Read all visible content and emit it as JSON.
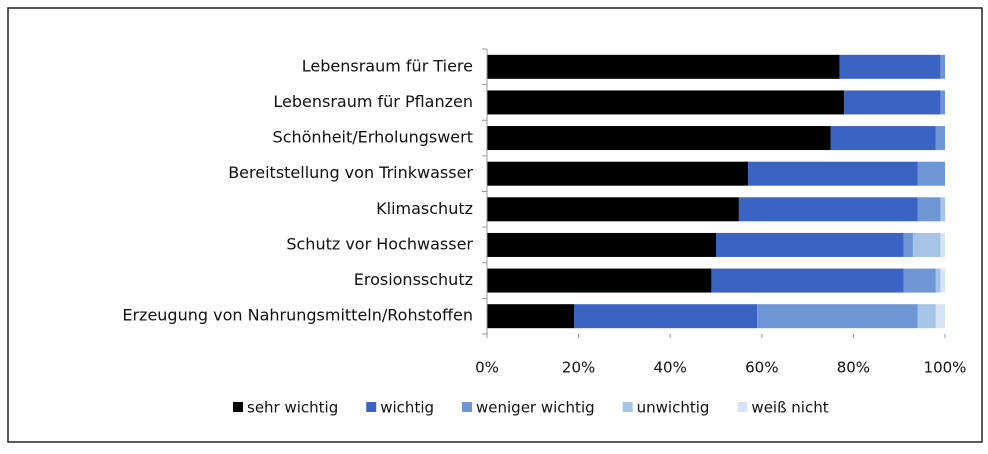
{
  "chart_data": {
    "type": "stacked-bar-horizontal",
    "categories": [
      "Lebensraum für Tiere",
      "Lebensraum für Pflanzen",
      "Schönheit/Erholungswert",
      "Bereitstellung von Trinkwasser",
      "Klimaschutz",
      "Schutz vor Hochwasser",
      "Erosionsschutz",
      "Erzeugung von Nahrungsmitteln/Rohstoffen"
    ],
    "series": [
      {
        "name": "sehr wichtig",
        "color": "#000000",
        "values": [
          77,
          78,
          75,
          57,
          55,
          50,
          49,
          19
        ]
      },
      {
        "name": "wichtig",
        "color": "#3a63c4",
        "values": [
          22,
          21,
          23,
          37,
          39,
          41,
          42,
          40
        ]
      },
      {
        "name": "weniger wichtig",
        "color": "#6f96d4",
        "values": [
          1,
          1,
          2,
          6,
          5,
          2,
          7,
          35
        ]
      },
      {
        "name": "unwichtig",
        "color": "#a6c3e8",
        "values": [
          0,
          0,
          0,
          0,
          1,
          6,
          1,
          4
        ]
      },
      {
        "name": "weiß nicht",
        "color": "#d6e4f5",
        "values": [
          0,
          0,
          0,
          0,
          0,
          1,
          1,
          2
        ]
      }
    ],
    "xlim": [
      0,
      100
    ],
    "xticks": [
      {
        "value": 0,
        "label": "0%"
      },
      {
        "value": 20,
        "label": "20%"
      },
      {
        "value": 40,
        "label": "40%"
      },
      {
        "value": 60,
        "label": "60%"
      },
      {
        "value": 80,
        "label": "80%"
      },
      {
        "value": 100,
        "label": "100%"
      }
    ],
    "legend": "bottom"
  }
}
